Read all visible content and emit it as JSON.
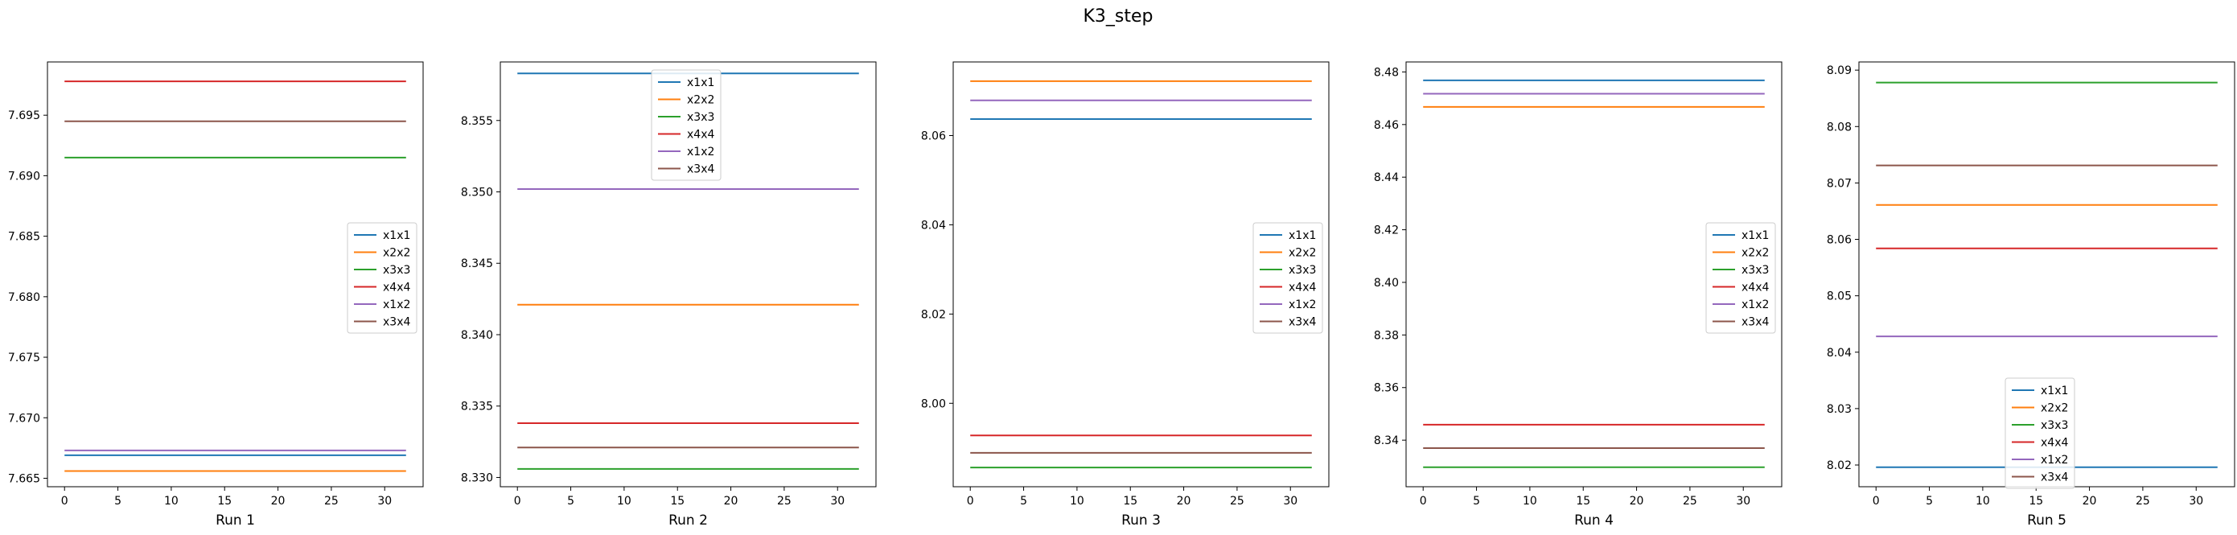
{
  "figure": {
    "title": "K3_step"
  },
  "chart_data": [
    {
      "type": "line",
      "xlabel": "Run 1",
      "xlim": [
        -1.6,
        33.6
      ],
      "xticks": [
        0,
        5,
        10,
        15,
        20,
        25,
        30
      ],
      "x_range": [
        0,
        32
      ],
      "ylim": [
        7.6643,
        7.6994
      ],
      "yticks": [
        "7.665",
        "7.670",
        "7.675",
        "7.680",
        "7.685",
        "7.690",
        "7.695"
      ],
      "legend": "center-right",
      "series": [
        {
          "name": "x1x1",
          "color": "#1f77b4",
          "value": 7.6669
        },
        {
          "name": "x2x2",
          "color": "#ff7f0e",
          "value": 7.6656
        },
        {
          "name": "x3x3",
          "color": "#2ca02c",
          "value": 7.6915
        },
        {
          "name": "x4x4",
          "color": "#d62728",
          "value": 7.6978
        },
        {
          "name": "x1x2",
          "color": "#9467bd",
          "value": 7.6673
        },
        {
          "name": "x3x4",
          "color": "#8c564b",
          "value": 7.6945
        }
      ]
    },
    {
      "type": "line",
      "xlabel": "Run 2",
      "xlim": [
        -1.6,
        33.6
      ],
      "xticks": [
        0,
        5,
        10,
        15,
        20,
        25,
        30
      ],
      "x_range": [
        0,
        32
      ],
      "ylim": [
        8.32935,
        8.3591
      ],
      "yticks": [
        "8.330",
        "8.335",
        "8.340",
        "8.345",
        "8.350",
        "8.355"
      ],
      "legend": "top-center",
      "series": [
        {
          "name": "x1x1",
          "color": "#1f77b4",
          "value": 8.3583
        },
        {
          "name": "x2x2",
          "color": "#ff7f0e",
          "value": 8.3421
        },
        {
          "name": "x3x3",
          "color": "#2ca02c",
          "value": 8.3306
        },
        {
          "name": "x4x4",
          "color": "#d62728",
          "value": 8.3338
        },
        {
          "name": "x1x2",
          "color": "#9467bd",
          "value": 8.3502
        },
        {
          "name": "x3x4",
          "color": "#8c564b",
          "value": 8.3321
        }
      ]
    },
    {
      "type": "line",
      "xlabel": "Run 3",
      "xlim": [
        -1.6,
        33.6
      ],
      "xticks": [
        0,
        5,
        10,
        15,
        20,
        25,
        30
      ],
      "x_range": [
        0,
        32
      ],
      "ylim": [
        7.9813,
        8.0765
      ],
      "yticks": [
        "8.00",
        "8.02",
        "8.04",
        "8.06"
      ],
      "legend": "center-right",
      "series": [
        {
          "name": "x1x1",
          "color": "#1f77b4",
          "value": 8.0637
        },
        {
          "name": "x2x2",
          "color": "#ff7f0e",
          "value": 8.0722
        },
        {
          "name": "x3x3",
          "color": "#2ca02c",
          "value": 7.9856
        },
        {
          "name": "x4x4",
          "color": "#d62728",
          "value": 7.9928
        },
        {
          "name": "x1x2",
          "color": "#9467bd",
          "value": 8.0679
        },
        {
          "name": "x3x4",
          "color": "#8c564b",
          "value": 7.9889
        }
      ]
    },
    {
      "type": "line",
      "xlabel": "Run 4",
      "xlim": [
        -1.6,
        33.6
      ],
      "xticks": [
        0,
        5,
        10,
        15,
        20,
        25,
        30
      ],
      "x_range": [
        0,
        32
      ],
      "ylim": [
        8.3223,
        8.4838
      ],
      "yticks": [
        "8.34",
        "8.36",
        "8.38",
        "8.40",
        "8.42",
        "8.44",
        "8.46",
        "8.48"
      ],
      "legend": "center-right",
      "series": [
        {
          "name": "x1x1",
          "color": "#1f77b4",
          "value": 8.4768
        },
        {
          "name": "x2x2",
          "color": "#ff7f0e",
          "value": 8.4667
        },
        {
          "name": "x3x3",
          "color": "#2ca02c",
          "value": 8.3297
        },
        {
          "name": "x4x4",
          "color": "#d62728",
          "value": 8.3459
        },
        {
          "name": "x1x2",
          "color": "#9467bd",
          "value": 8.4717
        },
        {
          "name": "x3x4",
          "color": "#8c564b",
          "value": 8.337
        }
      ]
    },
    {
      "type": "line",
      "xlabel": "Run 5",
      "xlim": [
        -1.6,
        33.6
      ],
      "xticks": [
        0,
        5,
        10,
        15,
        20,
        25,
        30
      ],
      "x_range": [
        0,
        32
      ],
      "ylim": [
        8.01615,
        8.09145
      ],
      "yticks": [
        "8.02",
        "8.03",
        "8.04",
        "8.05",
        "8.06",
        "8.07",
        "8.08",
        "8.09"
      ],
      "legend": "bottom-center",
      "series": [
        {
          "name": "x1x1",
          "color": "#1f77b4",
          "value": 8.0196
        },
        {
          "name": "x2x2",
          "color": "#ff7f0e",
          "value": 8.0661
        },
        {
          "name": "x3x3",
          "color": "#2ca02c",
          "value": 8.0878
        },
        {
          "name": "x4x4",
          "color": "#d62728",
          "value": 8.0584
        },
        {
          "name": "x1x2",
          "color": "#9467bd",
          "value": 8.0428
        },
        {
          "name": "x3x4",
          "color": "#8c564b",
          "value": 8.0731
        }
      ]
    }
  ]
}
